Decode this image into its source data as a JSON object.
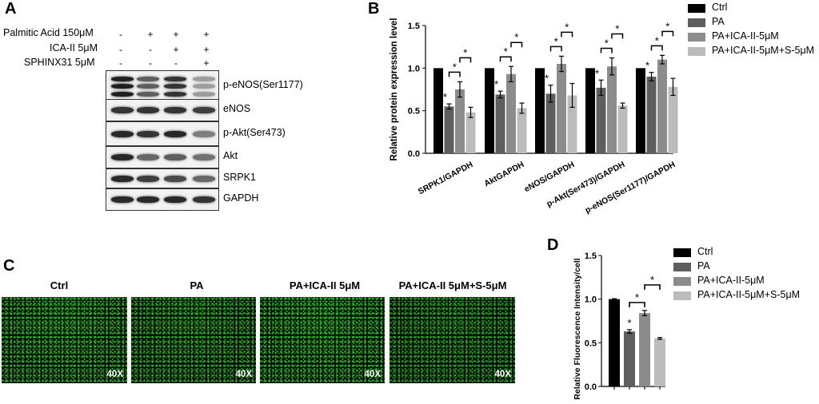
{
  "panels": {
    "a": "A",
    "b": "B",
    "c": "C",
    "d": "D"
  },
  "panel_a": {
    "conditions": [
      {
        "label": "Palmitic Acid 150μM",
        "signs": [
          "-",
          "+",
          "+",
          "+"
        ]
      },
      {
        "label": "ICA-II 5μM",
        "signs": [
          "-",
          "-",
          "+",
          "+"
        ]
      },
      {
        "label": "SPHINX31 5μM",
        "signs": [
          "-",
          "-",
          "-",
          "+"
        ]
      }
    ],
    "blots": [
      {
        "label": "p-eNOS(Ser1177)",
        "intensity": [
          0.95,
          0.65,
          0.85,
          0.35
        ],
        "rows": 3
      },
      {
        "label": "eNOS",
        "intensity": [
          0.85,
          0.85,
          0.85,
          0.8
        ],
        "rows": 1
      },
      {
        "label": "p-Akt(Ser473)",
        "intensity": [
          0.9,
          0.85,
          0.9,
          0.5
        ],
        "rows": 1
      },
      {
        "label": "Akt",
        "intensity": [
          0.9,
          0.6,
          0.65,
          0.55
        ],
        "rows": 1
      },
      {
        "label": "SRPK1",
        "intensity": [
          0.9,
          0.8,
          0.75,
          0.6
        ],
        "rows": 1
      },
      {
        "label": "GAPDH",
        "intensity": [
          0.9,
          0.9,
          0.9,
          0.85
        ],
        "rows": 1
      }
    ]
  },
  "panel_c": {
    "images": [
      {
        "title": "Ctrl",
        "mag": "40X",
        "brightness": 0.55
      },
      {
        "title": "PA",
        "mag": "40X",
        "brightness": 0.45
      },
      {
        "title": "PA+ICA-II 5μM",
        "mag": "40X",
        "brightness": 0.6
      },
      {
        "title": "PA+ICA-II 5μM+S-5μM",
        "mag": "40X",
        "brightness": 0.35
      }
    ]
  },
  "colors": {
    "ctrl": "#000000",
    "pa": "#5e5e5e",
    "ica": "#8c8c8c",
    "ica_s": "#bcbcbc"
  },
  "chart_data": [
    {
      "type": "bar",
      "ylabel": "Relative protein expression level",
      "ylim": [
        0,
        1.5
      ],
      "yticks": [
        "0.0",
        "0.5",
        "1.0",
        "1.5"
      ],
      "categories": [
        "SRPK1/GAPDH",
        "AktGAPDH",
        "eNOS/GAPDH",
        "p-Akt(Ser473)/GAPDH",
        "p-eNOS(Ser1177)/GAPDH"
      ],
      "series": [
        {
          "name": "Ctrl",
          "values": [
            1.0,
            1.0,
            1.0,
            1.0,
            1.0
          ],
          "errors": [
            0,
            0,
            0,
            0,
            0
          ]
        },
        {
          "name": "PA",
          "values": [
            0.55,
            0.69,
            0.7,
            0.77,
            0.9
          ],
          "errors": [
            0.03,
            0.04,
            0.1,
            0.09,
            0.05
          ]
        },
        {
          "name": "PA+ICA-II-5μM",
          "values": [
            0.75,
            0.93,
            1.05,
            1.02,
            1.1
          ],
          "errors": [
            0.09,
            0.09,
            0.09,
            0.1,
            0.05
          ]
        },
        {
          "name": "PA+ICA-II-5μM+S-5μM",
          "values": [
            0.48,
            0.53,
            0.68,
            0.56,
            0.78
          ],
          "errors": [
            0.06,
            0.06,
            0.14,
            0.03,
            0.1
          ]
        }
      ],
      "significance_mark": "*"
    },
    {
      "type": "bar",
      "ylabel": "Relative Fluorescence Intensity/cell",
      "ylim": [
        0,
        1.5
      ],
      "yticks": [
        "0.0",
        "0.5",
        "1.0",
        "1.5"
      ],
      "categories": [
        ""
      ],
      "series": [
        {
          "name": "Ctrl",
          "values": [
            1.0
          ],
          "errors": [
            0.005
          ]
        },
        {
          "name": "PA",
          "values": [
            0.63
          ],
          "errors": [
            0.02
          ]
        },
        {
          "name": "PA+ICA-II-5μM",
          "values": [
            0.84
          ],
          "errors": [
            0.03
          ]
        },
        {
          "name": "PA+ICA-II-5μM+S-5μM",
          "values": [
            0.55
          ],
          "errors": [
            0.01
          ]
        }
      ],
      "significance_mark": "*"
    }
  ]
}
